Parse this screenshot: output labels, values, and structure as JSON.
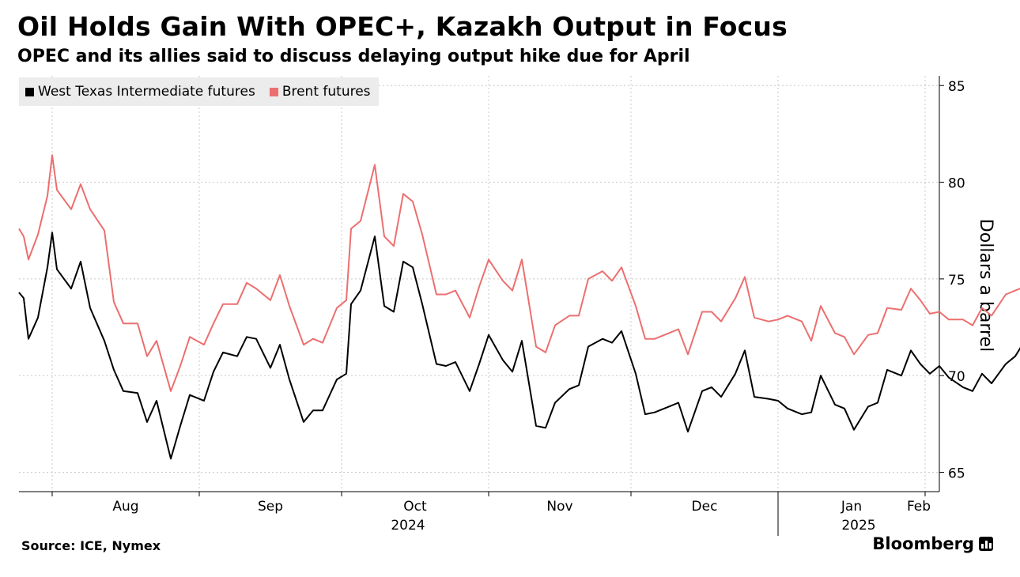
{
  "header": {
    "title": "Oil Holds Gain With OPEC+, Kazakh Output in Focus",
    "subtitle": "OPEC and its allies said to discuss delaying output hike due for April"
  },
  "footer": {
    "source": "Source: ICE, Nymex",
    "brand": "Bloomberg",
    "brand_icon": "bloomberg-chart-icon"
  },
  "colors": {
    "wti": "#000000",
    "brent": "#ec6f6f",
    "grid": "#c8c8c8",
    "legend_bg": "#ececec"
  },
  "chart_data": {
    "type": "line",
    "title": "Oil Holds Gain With OPEC+, Kazakh Output in Focus",
    "subtitle": "OPEC and its allies said to discuss delaying output hike due for April",
    "xlabel": "",
    "ylabel": "Dollars a barrel",
    "ylim": [
      64,
      85.5
    ],
    "yticks": [
      65,
      70,
      75,
      80,
      85
    ],
    "y_axis_side": "right",
    "grid": true,
    "legend_position": "top-left",
    "x_start": "2024-07-25",
    "x_end": "2025-02-04",
    "month_ticks": [
      {
        "label": "Aug",
        "date": "2024-08-01"
      },
      {
        "label": "Sep",
        "date": "2024-09-01"
      },
      {
        "label": "Oct",
        "date": "2024-10-01"
      },
      {
        "label": "Nov",
        "date": "2024-11-01"
      },
      {
        "label": "Dec",
        "date": "2024-12-01"
      },
      {
        "label": "Jan",
        "date": "2025-01-01"
      },
      {
        "label": "Feb",
        "date": "2025-02-01"
      }
    ],
    "year_ticks": [
      {
        "label": "2024",
        "date": "2024-10-15"
      },
      {
        "label": "2025",
        "date": "2025-01-18"
      }
    ],
    "series": [
      {
        "name": "West Texas Intermediate futures",
        "color": "#000000",
        "points": [
          [
            "2024-07-25",
            74.3
          ],
          [
            "2024-07-26",
            74.0
          ],
          [
            "2024-07-27",
            71.9
          ],
          [
            "2024-07-29",
            73.0
          ],
          [
            "2024-07-31",
            75.6
          ],
          [
            "2024-08-01",
            77.4
          ],
          [
            "2024-08-02",
            75.5
          ],
          [
            "2024-08-05",
            74.5
          ],
          [
            "2024-08-07",
            75.9
          ],
          [
            "2024-08-09",
            73.5
          ],
          [
            "2024-08-12",
            71.8
          ],
          [
            "2024-08-14",
            70.3
          ],
          [
            "2024-08-16",
            69.2
          ],
          [
            "2024-08-19",
            69.1
          ],
          [
            "2024-08-21",
            67.6
          ],
          [
            "2024-08-23",
            68.7
          ],
          [
            "2024-08-26",
            65.7
          ],
          [
            "2024-08-28",
            67.4
          ],
          [
            "2024-08-30",
            69.0
          ],
          [
            "2024-09-02",
            68.7
          ],
          [
            "2024-09-04",
            70.2
          ],
          [
            "2024-09-06",
            71.2
          ],
          [
            "2024-09-09",
            71.0
          ],
          [
            "2024-09-11",
            72.0
          ],
          [
            "2024-09-13",
            71.9
          ],
          [
            "2024-09-16",
            70.4
          ],
          [
            "2024-09-18",
            71.6
          ],
          [
            "2024-09-20",
            69.8
          ],
          [
            "2024-09-23",
            67.6
          ],
          [
            "2024-09-25",
            68.2
          ],
          [
            "2024-09-27",
            68.2
          ],
          [
            "2024-09-30",
            69.8
          ],
          [
            "2024-10-02",
            70.1
          ],
          [
            "2024-10-03",
            73.7
          ],
          [
            "2024-10-05",
            74.4
          ],
          [
            "2024-10-08",
            77.2
          ],
          [
            "2024-10-10",
            73.6
          ],
          [
            "2024-10-12",
            73.3
          ],
          [
            "2024-10-14",
            75.9
          ],
          [
            "2024-10-16",
            75.6
          ],
          [
            "2024-10-18",
            73.7
          ],
          [
            "2024-10-21",
            70.6
          ],
          [
            "2024-10-23",
            70.5
          ],
          [
            "2024-10-25",
            70.7
          ],
          [
            "2024-10-28",
            69.2
          ],
          [
            "2024-10-30",
            70.6
          ],
          [
            "2024-11-01",
            72.1
          ],
          [
            "2024-11-04",
            70.8
          ],
          [
            "2024-11-06",
            70.2
          ],
          [
            "2024-11-08",
            71.8
          ],
          [
            "2024-11-11",
            67.4
          ],
          [
            "2024-11-13",
            67.3
          ],
          [
            "2024-11-15",
            68.6
          ],
          [
            "2024-11-18",
            69.3
          ],
          [
            "2024-11-20",
            69.5
          ],
          [
            "2024-11-22",
            71.5
          ],
          [
            "2024-11-25",
            71.9
          ],
          [
            "2024-11-27",
            71.7
          ],
          [
            "2024-11-29",
            72.3
          ],
          [
            "2024-12-02",
            70.1
          ],
          [
            "2024-12-04",
            68.0
          ],
          [
            "2024-12-06",
            68.1
          ],
          [
            "2024-12-09",
            68.4
          ],
          [
            "2024-12-11",
            68.6
          ],
          [
            "2024-12-13",
            67.1
          ],
          [
            "2024-12-16",
            69.2
          ],
          [
            "2024-12-18",
            69.4
          ],
          [
            "2024-12-20",
            68.9
          ],
          [
            "2024-12-23",
            70.1
          ],
          [
            "2024-12-25",
            71.3
          ],
          [
            "2024-12-27",
            68.9
          ],
          [
            "2024-12-30",
            68.8
          ],
          [
            "2025-01-01",
            68.7
          ],
          [
            "2025-01-03",
            68.3
          ],
          [
            "2025-01-06",
            68.0
          ],
          [
            "2025-01-08",
            68.1
          ],
          [
            "2025-01-10",
            70.0
          ],
          [
            "2025-01-13",
            68.5
          ],
          [
            "2025-01-15",
            68.3
          ],
          [
            "2025-01-17",
            67.2
          ],
          [
            "2025-01-20",
            68.4
          ],
          [
            "2025-01-22",
            68.6
          ],
          [
            "2025-01-24",
            70.3
          ],
          [
            "2025-01-27",
            70.0
          ],
          [
            "2025-01-29",
            71.3
          ],
          [
            "2025-01-31",
            70.6
          ],
          [
            "2025-02-02",
            70.1
          ],
          [
            "2025-02-04",
            70.5
          ],
          [
            "2025-02-06",
            69.9
          ],
          [
            "2025-02-09",
            69.4
          ],
          [
            "2025-02-11",
            69.2
          ],
          [
            "2025-02-13",
            70.1
          ],
          [
            "2025-02-15",
            69.6
          ],
          [
            "2025-02-18",
            70.6
          ],
          [
            "2025-02-20",
            71.0
          ],
          [
            "2025-02-22",
            71.8
          ]
        ]
      },
      {
        "name": "Brent futures",
        "color": "#ec6f6f",
        "points": [
          [
            "2024-07-25",
            77.6
          ],
          [
            "2024-07-26",
            77.2
          ],
          [
            "2024-07-27",
            76.0
          ],
          [
            "2024-07-29",
            77.3
          ],
          [
            "2024-07-31",
            79.3
          ],
          [
            "2024-08-01",
            81.4
          ],
          [
            "2024-08-02",
            79.6
          ],
          [
            "2024-08-05",
            78.6
          ],
          [
            "2024-08-07",
            79.9
          ],
          [
            "2024-08-09",
            78.6
          ],
          [
            "2024-08-12",
            77.5
          ],
          [
            "2024-08-14",
            73.8
          ],
          [
            "2024-08-16",
            72.7
          ],
          [
            "2024-08-19",
            72.7
          ],
          [
            "2024-08-21",
            71.0
          ],
          [
            "2024-08-23",
            71.8
          ],
          [
            "2024-08-26",
            69.2
          ],
          [
            "2024-08-28",
            70.5
          ],
          [
            "2024-08-30",
            72.0
          ],
          [
            "2024-09-02",
            71.6
          ],
          [
            "2024-09-04",
            72.7
          ],
          [
            "2024-09-06",
            73.7
          ],
          [
            "2024-09-09",
            73.7
          ],
          [
            "2024-09-11",
            74.8
          ],
          [
            "2024-09-13",
            74.5
          ],
          [
            "2024-09-16",
            73.9
          ],
          [
            "2024-09-18",
            75.2
          ],
          [
            "2024-09-20",
            73.6
          ],
          [
            "2024-09-23",
            71.6
          ],
          [
            "2024-09-25",
            71.9
          ],
          [
            "2024-09-27",
            71.7
          ],
          [
            "2024-09-30",
            73.5
          ],
          [
            "2024-10-02",
            73.9
          ],
          [
            "2024-10-03",
            77.6
          ],
          [
            "2024-10-05",
            78.0
          ],
          [
            "2024-10-08",
            80.9
          ],
          [
            "2024-10-10",
            77.2
          ],
          [
            "2024-10-12",
            76.7
          ],
          [
            "2024-10-14",
            79.4
          ],
          [
            "2024-10-16",
            79.0
          ],
          [
            "2024-10-18",
            77.3
          ],
          [
            "2024-10-21",
            74.2
          ],
          [
            "2024-10-23",
            74.2
          ],
          [
            "2024-10-25",
            74.4
          ],
          [
            "2024-10-28",
            73.0
          ],
          [
            "2024-10-30",
            74.6
          ],
          [
            "2024-11-01",
            76.0
          ],
          [
            "2024-11-04",
            74.9
          ],
          [
            "2024-11-06",
            74.4
          ],
          [
            "2024-11-08",
            76.0
          ],
          [
            "2024-11-11",
            71.5
          ],
          [
            "2024-11-13",
            71.2
          ],
          [
            "2024-11-15",
            72.6
          ],
          [
            "2024-11-18",
            73.1
          ],
          [
            "2024-11-20",
            73.1
          ],
          [
            "2024-11-22",
            75.0
          ],
          [
            "2024-11-25",
            75.4
          ],
          [
            "2024-11-27",
            74.9
          ],
          [
            "2024-11-29",
            75.6
          ],
          [
            "2024-12-02",
            73.6
          ],
          [
            "2024-12-04",
            71.9
          ],
          [
            "2024-12-06",
            71.9
          ],
          [
            "2024-12-09",
            72.2
          ],
          [
            "2024-12-11",
            72.4
          ],
          [
            "2024-12-13",
            71.1
          ],
          [
            "2024-12-16",
            73.3
          ],
          [
            "2024-12-18",
            73.3
          ],
          [
            "2024-12-20",
            72.8
          ],
          [
            "2024-12-23",
            74.0
          ],
          [
            "2024-12-25",
            75.1
          ],
          [
            "2024-12-27",
            73.0
          ],
          [
            "2024-12-30",
            72.8
          ],
          [
            "2025-01-01",
            72.9
          ],
          [
            "2025-01-03",
            73.1
          ],
          [
            "2025-01-06",
            72.8
          ],
          [
            "2025-01-08",
            71.8
          ],
          [
            "2025-01-10",
            73.6
          ],
          [
            "2025-01-13",
            72.2
          ],
          [
            "2025-01-15",
            72.0
          ],
          [
            "2025-01-17",
            71.1
          ],
          [
            "2025-01-20",
            72.1
          ],
          [
            "2025-01-22",
            72.2
          ],
          [
            "2025-01-24",
            73.5
          ],
          [
            "2025-01-27",
            73.4
          ],
          [
            "2025-01-29",
            74.5
          ],
          [
            "2025-01-31",
            73.9
          ],
          [
            "2025-02-02",
            73.2
          ],
          [
            "2025-02-04",
            73.3
          ],
          [
            "2025-02-06",
            72.9
          ],
          [
            "2025-02-09",
            72.9
          ],
          [
            "2025-02-11",
            72.6
          ],
          [
            "2025-02-13",
            73.5
          ],
          [
            "2025-02-15",
            73.1
          ],
          [
            "2025-02-18",
            74.2
          ],
          [
            "2025-02-20",
            74.4
          ],
          [
            "2025-02-22",
            74.6
          ]
        ]
      }
    ]
  }
}
